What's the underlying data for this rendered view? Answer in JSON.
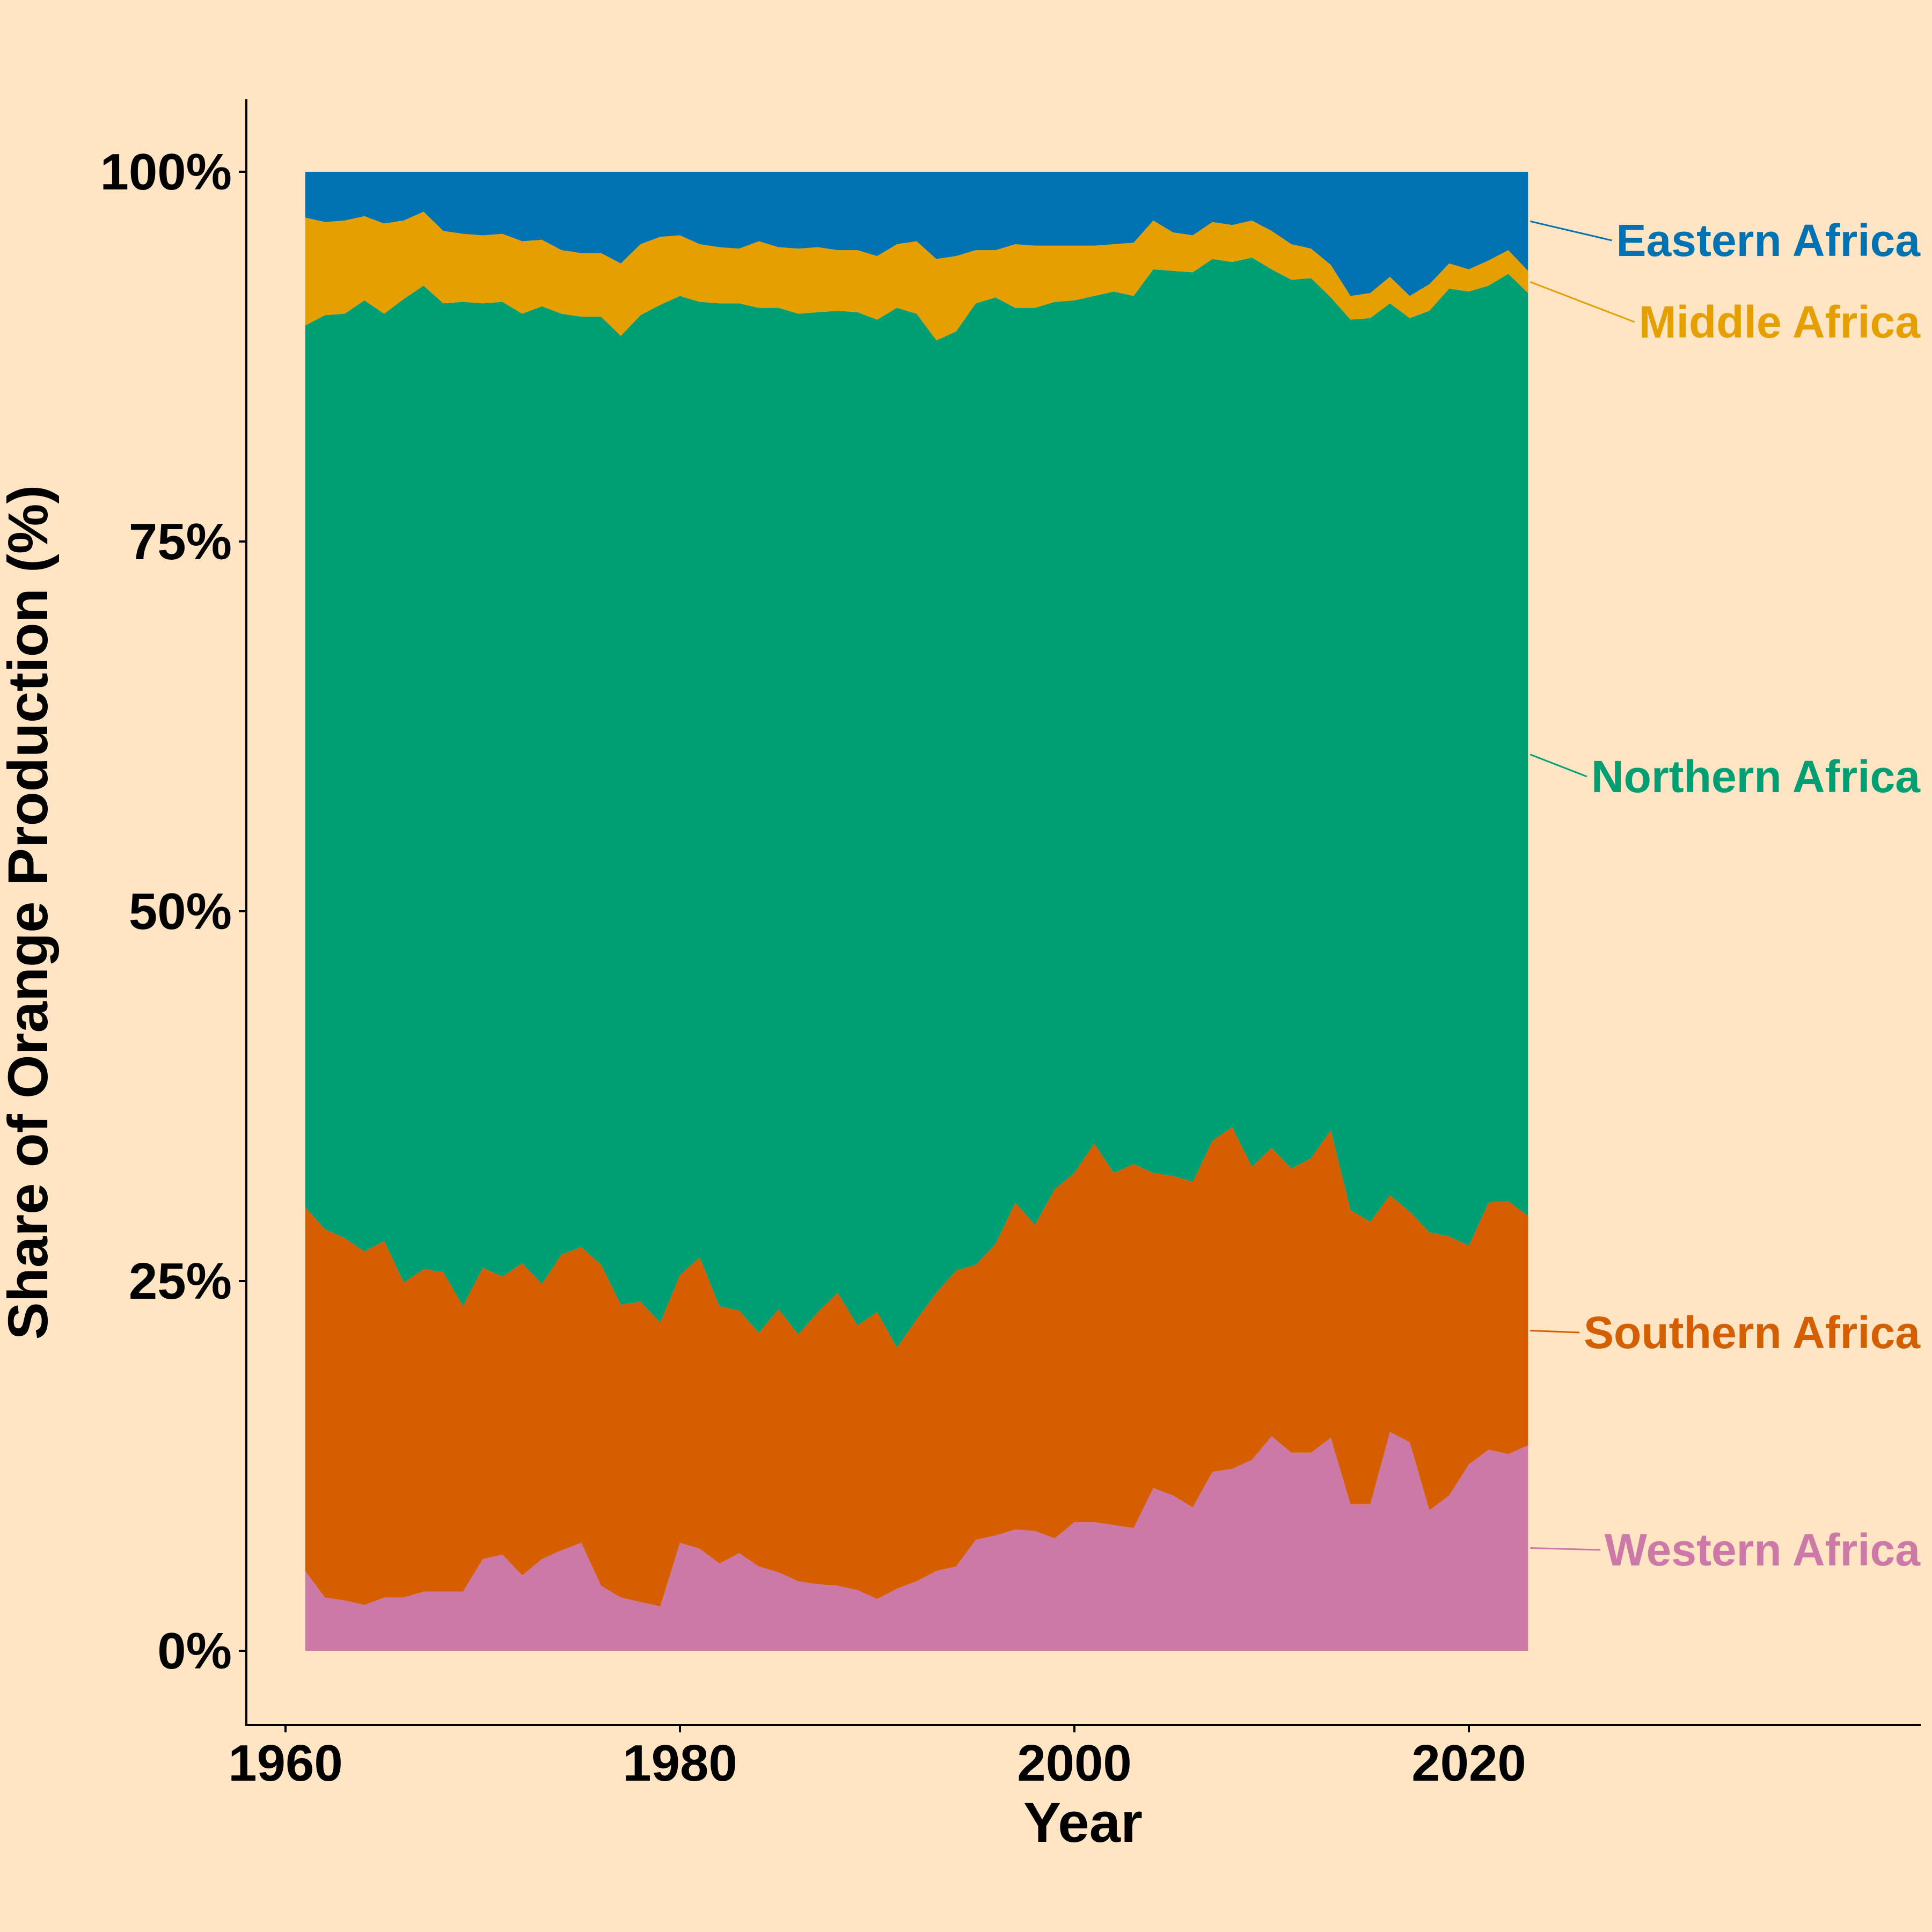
{
  "chart_data": {
    "type": "area",
    "stacked": "percent",
    "xlabel": "Year",
    "ylabel": "Share of Orange Production (%)",
    "xlim": [
      1957,
      2041
    ],
    "ylim": [
      -5,
      105
    ],
    "x_ticks": [
      1960,
      1980,
      2000,
      2020
    ],
    "x_tick_labels": [
      "1960",
      "1980",
      "2000",
      "2020"
    ],
    "y_ticks": [
      0,
      25,
      50,
      75,
      100
    ],
    "y_tick_labels": [
      "0%",
      "25%",
      "50%",
      "75%",
      "100%"
    ],
    "legend": "direct labels at right end",
    "grid": false,
    "background": "#FFE5C4",
    "x": [
      1961,
      1962,
      1963,
      1964,
      1965,
      1966,
      1967,
      1968,
      1969,
      1970,
      1971,
      1972,
      1973,
      1974,
      1975,
      1976,
      1977,
      1978,
      1979,
      1980,
      1981,
      1982,
      1983,
      1984,
      1985,
      1986,
      1987,
      1988,
      1989,
      1990,
      1991,
      1992,
      1993,
      1994,
      1995,
      1996,
      1997,
      1998,
      1999,
      2000,
      2001,
      2002,
      2003,
      2004,
      2005,
      2006,
      2007,
      2008,
      2009,
      2010,
      2011,
      2012,
      2013,
      2014,
      2015,
      2016,
      2017,
      2018,
      2019,
      2020,
      2021,
      2022,
      2023
    ],
    "series": [
      {
        "name": "Western Africa",
        "color": "#CC79A7",
        "values": [
          5.4,
          3.6,
          3.4,
          3.1,
          3.6,
          3.6,
          4.0,
          4.0,
          4.0,
          6.2,
          6.5,
          5.1,
          6.2,
          6.8,
          7.3,
          4.4,
          3.6,
          3.3,
          3.0,
          7.3,
          6.9,
          5.9,
          6.6,
          5.7,
          5.3,
          4.7,
          4.5,
          4.4,
          4.1,
          3.5,
          4.2,
          4.7,
          5.4,
          5.7,
          7.5,
          7.8,
          8.2,
          8.1,
          7.6,
          8.7,
          8.7,
          8.5,
          8.3,
          11.0,
          10.5,
          9.7,
          12.1,
          12.3,
          12.9,
          14.5,
          13.4,
          13.4,
          14.4,
          9.9,
          9.9,
          14.8,
          14.1,
          9.5,
          10.5,
          12.6,
          13.6,
          13.3,
          13.9
        ]
      },
      {
        "name": "Southern Africa",
        "color": "#D55E00",
        "values": [
          24.6,
          24.9,
          24.5,
          23.9,
          24.1,
          21.3,
          21.8,
          21.6,
          19.3,
          19.7,
          18.8,
          21.1,
          18.6,
          20.0,
          20.0,
          21.7,
          19.8,
          20.3,
          19.2,
          18.1,
          19.7,
          17.4,
          16.4,
          15.8,
          17.8,
          16.7,
          18.4,
          19.8,
          17.9,
          19.4,
          16.3,
          17.7,
          18.8,
          20.0,
          18.6,
          19.7,
          22.1,
          20.7,
          23.6,
          23.6,
          25.6,
          23.8,
          24.6,
          21.3,
          21.6,
          22.0,
          22.4,
          23.1,
          19.8,
          19.5,
          19.2,
          19.9,
          20.8,
          19.9,
          19.1,
          16.0,
          15.6,
          18.8,
          17.5,
          14.8,
          16.7,
          17.1,
          15.5
        ]
      },
      {
        "name": "Northern Africa",
        "color": "#009E73",
        "values": [
          59.6,
          61.8,
          62.5,
          64.3,
          62.7,
          66.5,
          66.5,
          65.5,
          67.9,
          65.2,
          65.9,
          64.2,
          66.1,
          63.6,
          62.9,
          64.1,
          65.5,
          66.7,
          68.8,
          66.2,
          64.6,
          67.8,
          68.1,
          69.3,
          67.7,
          69.0,
          67.6,
          66.4,
          68.5,
          67.1,
          70.3,
          68.0,
          64.4,
          63.5,
          65.0,
          64.0,
          60.5,
          62.0,
          60.0,
          59.0,
          57.3,
          59.6,
          58.7,
          61.1,
          61.2,
          61.5,
          59.6,
          58.5,
          61.4,
          59.4,
          60.1,
          59.5,
          56.3,
          60.2,
          61.1,
          60.3,
          60.4,
          62.3,
          64.1,
          64.5,
          62.0,
          62.7,
          62.4
        ]
      },
      {
        "name": "Middle Africa",
        "color": "#E69F00",
        "values": [
          7.3,
          6.3,
          6.3,
          5.7,
          6.1,
          5.3,
          5.0,
          4.9,
          4.6,
          4.6,
          4.6,
          4.9,
          4.5,
          4.3,
          4.3,
          4.3,
          4.9,
          4.8,
          4.6,
          4.1,
          3.9,
          3.8,
          3.7,
          4.5,
          4.1,
          4.4,
          4.4,
          4.1,
          4.2,
          4.3,
          4.3,
          4.9,
          5.5,
          5.1,
          3.6,
          3.2,
          4.3,
          4.2,
          3.8,
          3.7,
          3.4,
          3.2,
          3.6,
          3.3,
          2.6,
          2.5,
          2.5,
          2.5,
          2.5,
          2.6,
          2.4,
          2.0,
          2.2,
          1.6,
          1.7,
          1.8,
          1.5,
          1.8,
          1.7,
          1.5,
          1.7,
          1.6,
          1.5
        ]
      },
      {
        "name": "Eastern Africa",
        "color": "#0072B2",
        "values": [
          3.1,
          3.4,
          3.3,
          3.0,
          3.5,
          3.3,
          2.7,
          4.0,
          4.2,
          4.3,
          4.2,
          4.7,
          4.6,
          5.3,
          5.5,
          5.5,
          6.2,
          4.9,
          4.4,
          4.3,
          4.9,
          5.1,
          5.2,
          4.7,
          5.1,
          5.2,
          5.1,
          5.3,
          5.3,
          5.7,
          4.9,
          4.7,
          5.9,
          5.7,
          5.3,
          5.3,
          4.9,
          5.0,
          5.0,
          5.0,
          5.0,
          4.9,
          4.8,
          3.3,
          4.1,
          4.3,
          3.4,
          3.6,
          3.3,
          4.0,
          4.9,
          5.2,
          6.3,
          8.4,
          8.2,
          7.1,
          8.4,
          7.6,
          6.2,
          6.6,
          6.0,
          5.3,
          6.7
        ]
      }
    ]
  }
}
